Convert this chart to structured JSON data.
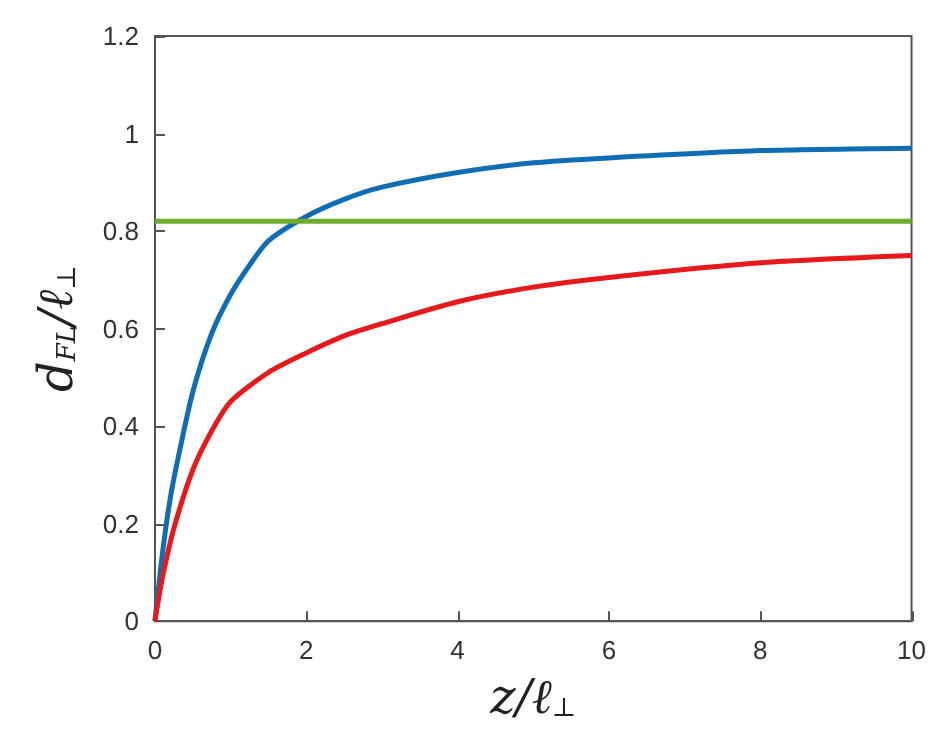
{
  "chart_data": {
    "type": "line",
    "xlabel": "z/ℓ$_{⊥}$",
    "ylabel": "d$_{FL}$/ℓ$_{⊥}$",
    "xlim": [
      0,
      10
    ],
    "ylim": [
      0,
      1.2
    ],
    "xticks": [
      0,
      2,
      4,
      6,
      8,
      10
    ],
    "yticks": [
      0,
      0.2,
      0.4,
      0.6,
      0.8,
      1,
      1.2
    ],
    "grid": false,
    "marker": "none",
    "line_style": "solid",
    "series": [
      {
        "color": "#0f6db5",
        "x": [
          0,
          0.1,
          0.2,
          0.3,
          0.5,
          0.75,
          1,
          1.25,
          1.5,
          2,
          2.5,
          3,
          4,
          5,
          6,
          8,
          10
        ],
        "values": [
          0,
          0.14,
          0.25,
          0.33,
          0.47,
          0.59,
          0.67,
          0.73,
          0.78,
          0.83,
          0.865,
          0.89,
          0.92,
          0.94,
          0.95,
          0.965,
          0.97
        ]
      },
      {
        "color": "#e8191b",
        "x": [
          0,
          0.1,
          0.25,
          0.5,
          0.75,
          1,
          1.5,
          2,
          2.5,
          3,
          4,
          5,
          6,
          8,
          10
        ],
        "values": [
          0,
          0.09,
          0.19,
          0.31,
          0.39,
          0.45,
          0.51,
          0.55,
          0.585,
          0.61,
          0.655,
          0.685,
          0.705,
          0.735,
          0.75
        ]
      },
      {
        "color": "#6eab2f",
        "x": [
          0,
          10
        ],
        "values": [
          0.82,
          0.82
        ]
      }
    ]
  }
}
